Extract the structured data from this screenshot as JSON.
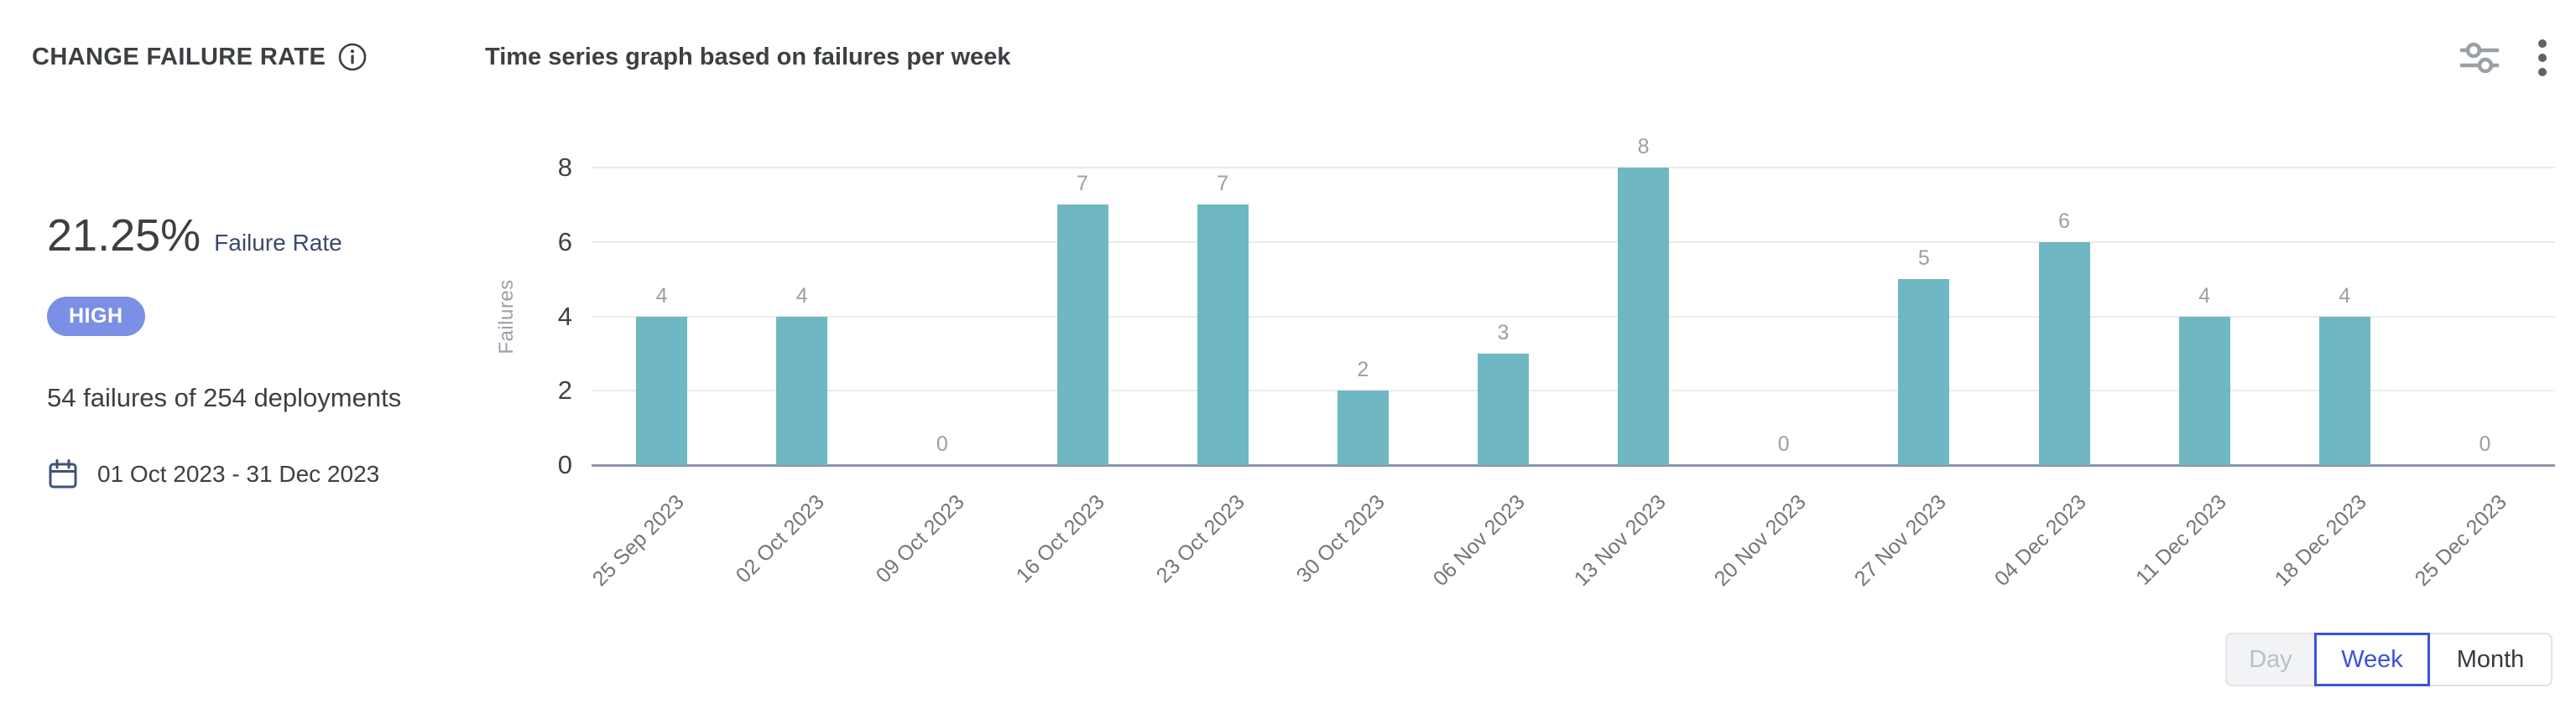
{
  "header": {
    "title": "CHANGE FAILURE RATE",
    "chart_title": "Time series graph based on failures per week"
  },
  "stats": {
    "rate_value": "21.25%",
    "rate_label": "Failure Rate",
    "severity_badge": "HIGH",
    "summary": "54 failures of 254 deployments",
    "date_range": "01 Oct 2023 - 31 Dec 2023"
  },
  "chart_data": {
    "type": "bar",
    "title": "Time series graph based on failures per week",
    "categories": [
      "25 Sep 2023",
      "02 Oct 2023",
      "09 Oct 2023",
      "16 Oct 2023",
      "23 Oct 2023",
      "30 Oct 2023",
      "06 Nov 2023",
      "13 Nov 2023",
      "20 Nov 2023",
      "27 Nov 2023",
      "04 Dec 2023",
      "11 Dec 2023",
      "18 Dec 2023",
      "25 Dec 2023"
    ],
    "values": [
      4,
      4,
      0,
      7,
      7,
      2,
      3,
      8,
      0,
      5,
      6,
      4,
      4,
      0
    ],
    "xlabel": "",
    "ylabel": "Failures",
    "ylim": [
      0,
      8
    ],
    "yticks": [
      0,
      2,
      4,
      6,
      8
    ],
    "grid": true,
    "legend": "none",
    "bar_color": "#6fb8c3",
    "value_label_color": "#9aa0a6"
  },
  "colors": {
    "accent_blue": "#3b52db",
    "badge_high": "#7b90e4",
    "bar_teal": "#6fb8c3",
    "text_dark": "#3c4043",
    "navy": "#394a6d"
  },
  "granularity": {
    "options": [
      {
        "label": "Day",
        "state": "disabled"
      },
      {
        "label": "Week",
        "state": "selected"
      },
      {
        "label": "Month",
        "state": "default"
      }
    ]
  }
}
